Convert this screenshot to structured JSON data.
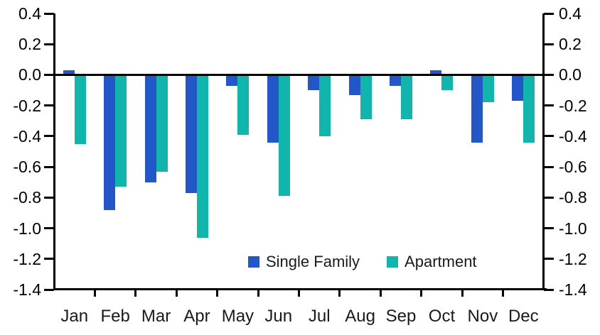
{
  "chart": {
    "background_color": "#ffffff",
    "axis_color": "#000000",
    "text_color": "#1a1a1a"
  },
  "chart_data": {
    "type": "bar",
    "title": "",
    "categories": [
      "Jan",
      "Feb",
      "Mar",
      "Apr",
      "May",
      "Jun",
      "Jul",
      "Aug",
      "Sep",
      "Oct",
      "Nov",
      "Dec"
    ],
    "series": [
      {
        "name": "Single Family",
        "color": "#2356c9",
        "values": [
          0.03,
          -0.88,
          -0.7,
          -0.77,
          -0.07,
          -0.44,
          -0.1,
          -0.13,
          -0.07,
          0.03,
          -0.44,
          -0.17
        ]
      },
      {
        "name": "Apartment",
        "color": "#10b5ab",
        "values": [
          -0.45,
          -0.73,
          -0.63,
          -1.06,
          -0.39,
          -0.79,
          -0.4,
          -0.29,
          -0.29,
          -0.1,
          -0.18,
          -0.44
        ]
      }
    ],
    "ylim": [
      -1.4,
      0.4
    ],
    "ytick_values": [
      0.4,
      0.2,
      0.0,
      -0.2,
      -0.4,
      -0.6,
      -0.8,
      -1.0,
      -1.2,
      -1.4
    ],
    "ytick_labels": [
      "0.4",
      "0.2",
      "0.0",
      "-0.2",
      "-0.4",
      "-0.6",
      "-0.8",
      "-1.0",
      "-1.2",
      "-1.4"
    ],
    "dual_y_axis": true,
    "grid": false,
    "zero_line": true,
    "legend_position": "inside-bottom-center"
  }
}
